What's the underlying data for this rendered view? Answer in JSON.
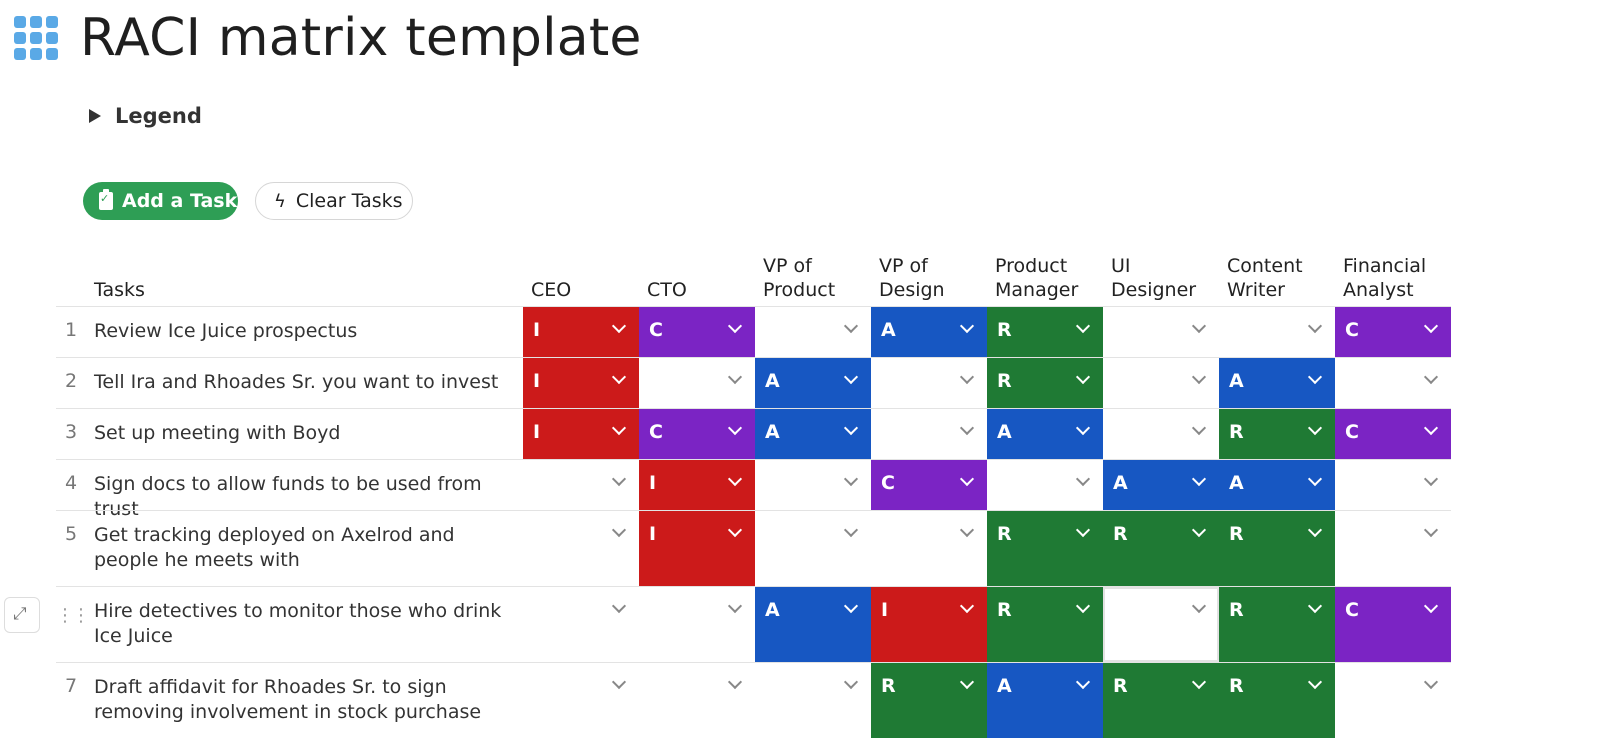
{
  "title": "RACI matrix template",
  "legend_label": "Legend",
  "buttons": {
    "add_task": "Add a Task",
    "clear_tasks": "Clear Tasks"
  },
  "columns": {
    "tasks": "Tasks",
    "roles": [
      {
        "line1": "CEO",
        "line2": ""
      },
      {
        "line1": "CTO",
        "line2": ""
      },
      {
        "line1": "VP of",
        "line2": "Product"
      },
      {
        "line1": "VP of",
        "line2": "Design"
      },
      {
        "line1": "Product",
        "line2": "Manager"
      },
      {
        "line1": "UI",
        "line2": "Designer"
      },
      {
        "line1": "Content",
        "line2": "Writer"
      },
      {
        "line1": "Financial",
        "line2": "Analyst"
      }
    ]
  },
  "rows": [
    {
      "num": "1",
      "task": "Review Ice Juice prospectus",
      "cells": [
        "I",
        "C",
        "",
        "A",
        "R",
        "",
        "",
        "C"
      ]
    },
    {
      "num": "2",
      "task": "Tell Ira and Rhoades Sr. you want to invest",
      "cells": [
        "I",
        "",
        "A",
        "",
        "R",
        "",
        "A",
        ""
      ]
    },
    {
      "num": "3",
      "task": "Set up meeting with Boyd",
      "cells": [
        "I",
        "C",
        "A",
        "",
        "A",
        "",
        "R",
        "C"
      ]
    },
    {
      "num": "4",
      "task": "Sign docs to allow funds to be used from trust",
      "cells": [
        "",
        "I",
        "",
        "C",
        "",
        "A",
        "A",
        ""
      ]
    },
    {
      "num": "5",
      "task": "Get tracking deployed on Axelrod and people he meets with",
      "cells": [
        "",
        "I",
        "",
        "",
        "R",
        "R",
        "R",
        ""
      ]
    },
    {
      "num": "",
      "task": "Hire detectives to monitor those who drink Ice Juice",
      "cells": [
        "",
        "",
        "A",
        "I",
        "R",
        "",
        "R",
        "C"
      ],
      "hovered": true
    },
    {
      "num": "7",
      "task": "Draft affidavit for Rhoades Sr. to sign removing involvement in stock purchase",
      "cells": [
        "",
        "",
        "",
        "R",
        "A",
        "R",
        "R",
        ""
      ]
    }
  ],
  "colors": {
    "I": "#cc1a1a",
    "C": "#7b24c4",
    "A": "#1757c2",
    "R": "#1f7a34",
    "accent": "#2e9e55"
  },
  "icons": {
    "app": "grid-icon",
    "expand": "expand-icon",
    "drag": "drag-handle-icon",
    "bolt": "lightning-icon",
    "clipboard": "clipboard-check-icon"
  }
}
